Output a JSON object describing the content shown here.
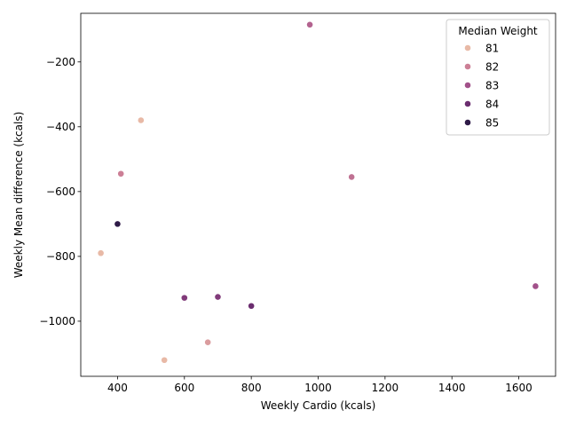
{
  "chart_data": {
    "type": "scatter",
    "xlabel": "Weekly Cardio (kcals)",
    "ylabel": "Weekly Mean difference (kcals)",
    "xlim": [
      290,
      1710
    ],
    "ylim": [
      -1170,
      -50
    ],
    "xticks": [
      400,
      600,
      800,
      1000,
      1200,
      1400,
      1600
    ],
    "yticks": [
      -1000,
      -800,
      -600,
      -400,
      -200
    ],
    "xtick_labels": [
      "400",
      "600",
      "800",
      "1000",
      "1200",
      "1400",
      "1600"
    ],
    "ytick_labels": [
      "−1000",
      "−800",
      "−600",
      "−400",
      "−200"
    ],
    "grid": false,
    "hue": "Median Weight",
    "legend": {
      "title": "Median Weight",
      "placement": "top-right",
      "entries": [
        {
          "label": "81",
          "value": 81,
          "color": "#e8b9a6"
        },
        {
          "label": "82",
          "value": 82,
          "color": "#cc7f96"
        },
        {
          "label": "83",
          "value": 83,
          "color": "#a2518a"
        },
        {
          "label": "84",
          "value": 84,
          "color": "#6b2d6f"
        },
        {
          "label": "85",
          "value": 85,
          "color": "#2e1a47"
        }
      ]
    },
    "points": [
      {
        "x": 975,
        "y": -85,
        "weight": 82.6
      },
      {
        "x": 470,
        "y": -380,
        "weight": 80.6
      },
      {
        "x": 410,
        "y": -545,
        "weight": 82.0
      },
      {
        "x": 1100,
        "y": -555,
        "weight": 82.3
      },
      {
        "x": 400,
        "y": -700,
        "weight": 85.0
      },
      {
        "x": 350,
        "y": -790,
        "weight": 80.8
      },
      {
        "x": 1650,
        "y": -892,
        "weight": 83.0
      },
      {
        "x": 700,
        "y": -925,
        "weight": 83.6
      },
      {
        "x": 600,
        "y": -928,
        "weight": 83.6
      },
      {
        "x": 800,
        "y": -953,
        "weight": 84.0
      },
      {
        "x": 670,
        "y": -1065,
        "weight": 81.5
      },
      {
        "x": 540,
        "y": -1120,
        "weight": 80.7
      }
    ]
  }
}
